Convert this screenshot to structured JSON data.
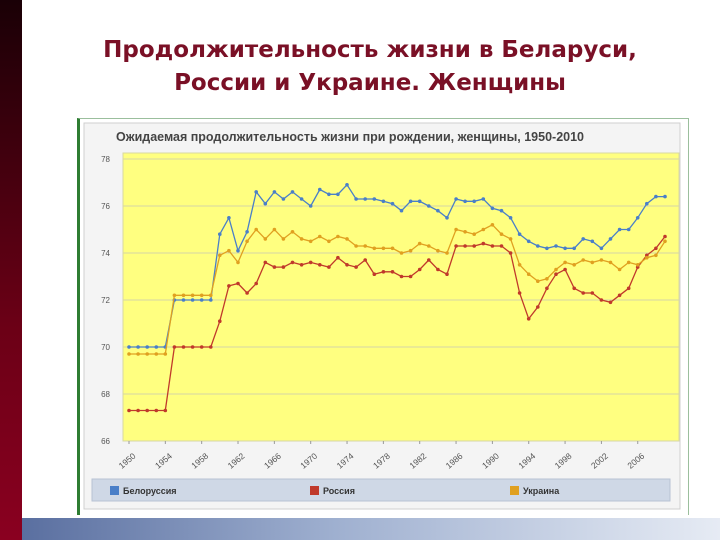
{
  "slide": {
    "title_line1": "Продолжительность жизни в Беларуси,",
    "title_line2": "России и Украине. Женщины"
  },
  "chart_data": {
    "type": "line",
    "title": "Ожидаемая продолжительность жизни при рождении, женщины, 1950-2010",
    "xlabel": "",
    "ylabel": "",
    "ylim": [
      66,
      78
    ],
    "yticks": [
      66,
      68,
      70,
      72,
      74,
      76,
      78
    ],
    "xticks": [
      1950,
      1954,
      1958,
      1962,
      1966,
      1970,
      1974,
      1978,
      1982,
      1986,
      1990,
      1994,
      1998,
      2002,
      2006
    ],
    "grid": true,
    "legend_position": "bottom",
    "background": "#ffff80",
    "x": [
      1950,
      1951,
      1952,
      1953,
      1954,
      1955,
      1956,
      1957,
      1958,
      1959,
      1960,
      1961,
      1962,
      1963,
      1964,
      1965,
      1966,
      1967,
      1968,
      1969,
      1970,
      1971,
      1972,
      1973,
      1974,
      1975,
      1976,
      1977,
      1978,
      1979,
      1980,
      1981,
      1982,
      1983,
      1984,
      1985,
      1986,
      1987,
      1988,
      1989,
      1990,
      1991,
      1992,
      1993,
      1994,
      1995,
      1996,
      1997,
      1998,
      1999,
      2000,
      2001,
      2002,
      2003,
      2004,
      2005,
      2006,
      2007,
      2008,
      2009
    ],
    "series": [
      {
        "name": "Белоруссия",
        "color": "#4a7fc8",
        "values": [
          70.0,
          70.0,
          70.0,
          70.0,
          70.0,
          72.0,
          72.0,
          72.0,
          72.0,
          72.0,
          74.8,
          75.5,
          74.1,
          74.9,
          76.6,
          76.1,
          76.6,
          76.3,
          76.6,
          76.3,
          76.0,
          76.7,
          76.5,
          76.5,
          76.9,
          76.3,
          76.3,
          76.3,
          76.2,
          76.1,
          75.8,
          76.2,
          76.2,
          76.0,
          75.8,
          75.5,
          76.3,
          76.2,
          76.2,
          76.3,
          75.9,
          75.8,
          75.5,
          74.8,
          74.5,
          74.3,
          74.2,
          74.3,
          74.2,
          74.2,
          74.6,
          74.5,
          74.2,
          74.6,
          75.0,
          75.0,
          75.5,
          76.1,
          76.4,
          76.4
        ]
      },
      {
        "name": "Россия",
        "color": "#c0392b",
        "values": [
          67.3,
          67.3,
          67.3,
          67.3,
          67.3,
          70.0,
          70.0,
          70.0,
          70.0,
          70.0,
          71.1,
          72.6,
          72.7,
          72.3,
          72.7,
          73.6,
          73.4,
          73.4,
          73.6,
          73.5,
          73.6,
          73.5,
          73.4,
          73.8,
          73.5,
          73.4,
          73.7,
          73.1,
          73.2,
          73.2,
          73.0,
          73.0,
          73.3,
          73.7,
          73.3,
          73.1,
          74.3,
          74.3,
          74.3,
          74.4,
          74.3,
          74.3,
          74.0,
          72.3,
          71.2,
          71.7,
          72.5,
          73.1,
          73.3,
          72.5,
          72.3,
          72.3,
          72.0,
          71.9,
          72.2,
          72.5,
          73.4,
          73.9,
          74.2,
          74.7
        ]
      },
      {
        "name": "Украина",
        "color": "#e0a020",
        "values": [
          69.7,
          69.7,
          69.7,
          69.7,
          69.7,
          72.2,
          72.2,
          72.2,
          72.2,
          72.2,
          73.9,
          74.1,
          73.6,
          74.5,
          75.0,
          74.6,
          75.0,
          74.6,
          74.9,
          74.6,
          74.5,
          74.7,
          74.5,
          74.7,
          74.6,
          74.3,
          74.3,
          74.2,
          74.2,
          74.2,
          74.0,
          74.1,
          74.4,
          74.3,
          74.1,
          74.0,
          75.0,
          74.9,
          74.8,
          75.0,
          75.2,
          74.8,
          74.6,
          73.5,
          73.1,
          72.8,
          72.9,
          73.3,
          73.6,
          73.5,
          73.7,
          73.6,
          73.7,
          73.6,
          73.3,
          73.6,
          73.5,
          73.8,
          73.9,
          74.5
        ]
      }
    ]
  }
}
